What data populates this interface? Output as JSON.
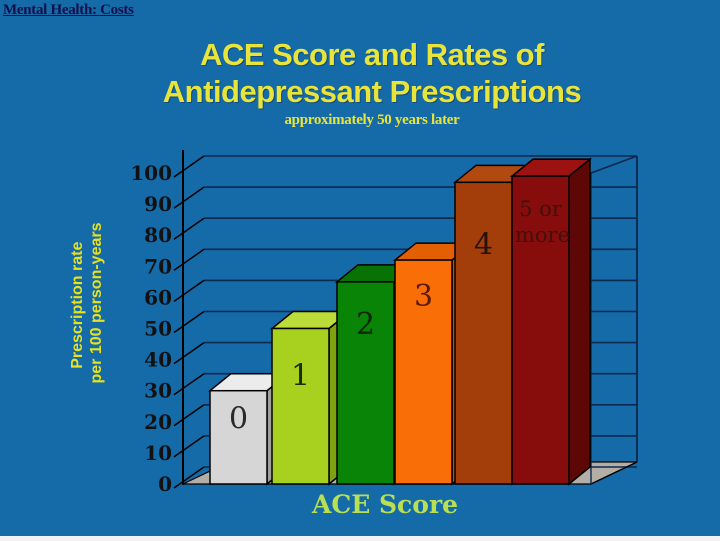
{
  "header": {
    "label": "Mental Health:  Costs"
  },
  "title": {
    "line1": "ACE Score and Rates of",
    "line2": "Antidepressant Prescriptions",
    "subtitle": "approximately 50 years later"
  },
  "colors": {
    "background": "#156aa8",
    "bottom_strip": "#f2f2f2",
    "grid": "#0e2850",
    "axis": "#000000",
    "floor": "#b3afa6",
    "title": "#e9e43a",
    "ylabel": "#e6e21f",
    "xlabel": "#b9e052",
    "tick_label": "#111111",
    "header": "#10104a"
  },
  "chart_data": {
    "type": "bar",
    "projection": "3d",
    "title": "ACE Score and Rates of Antidepressant Prescriptions",
    "subtitle": "approximately 50 years later",
    "xlabel": "ACE Score",
    "ylabel": "Prescription rate per 100 person-years",
    "ylabel_lines": [
      "Prescription rate",
      "per 100 person-years"
    ],
    "ylim": [
      0,
      100
    ],
    "yticks": [
      0,
      10,
      20,
      30,
      40,
      50,
      60,
      70,
      80,
      90,
      100
    ],
    "grid": true,
    "legend": false,
    "categories": [
      "0",
      "1",
      "2",
      "3",
      "4",
      "5 or more"
    ],
    "values": [
      30,
      50,
      65,
      72,
      97,
      99
    ],
    "bars": [
      {
        "category": "0",
        "value": 30,
        "front": "#d6d6d6",
        "top": "#ececec",
        "side": "#9f9f9f",
        "label_color": "#2a2a2a",
        "label_dy": 38
      },
      {
        "category": "1",
        "value": 50,
        "front": "#a8d01e",
        "top": "#bcdc3a",
        "side": "#7fa30f",
        "label_color": "#1c2a05",
        "label_dy": 57
      },
      {
        "category": "2",
        "value": 65,
        "front": "#0a8406",
        "top": "#087204",
        "side": "#065c03",
        "label_color": "#0e2706",
        "label_dy": 52
      },
      {
        "category": "3",
        "value": 72,
        "front": "#fa6e08",
        "top": "#e25f04",
        "side": "#bf5403",
        "label_color": "#5c1a06",
        "label_dy": 46
      },
      {
        "category": "4",
        "value": 97,
        "front": "#a33e0b",
        "top": "#b04a10",
        "side": "#7c2f07",
        "label_color": "#26120a",
        "label_dy": 72
      },
      {
        "category": "5 or more",
        "value": 99,
        "front": "#870d0c",
        "top": "#9c1210",
        "side": "#5d0806",
        "label_color": "#43100a",
        "label_dy": 40
      }
    ]
  }
}
